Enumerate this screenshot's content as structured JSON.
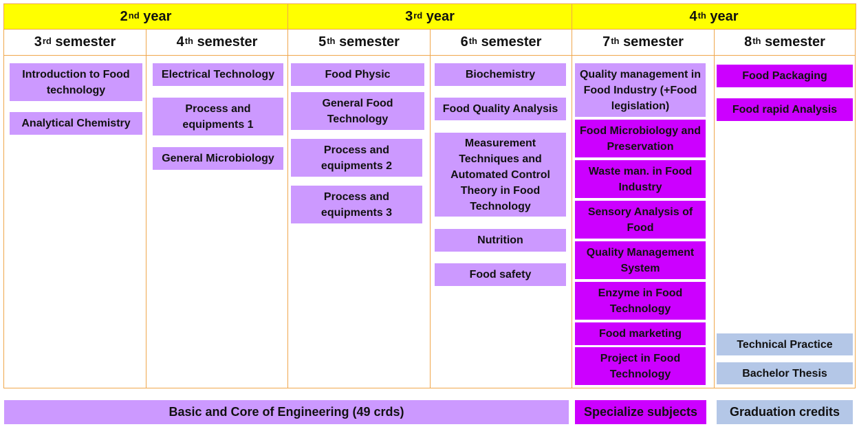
{
  "years": [
    {
      "num": "2",
      "sup": "nd",
      "text": "year"
    },
    {
      "num": "3",
      "sup": "rd",
      "text": "year"
    },
    {
      "num": "4",
      "sup": "th",
      "text": "year"
    }
  ],
  "semesters": [
    {
      "num": "3",
      "sup": "rd",
      "text": "semester"
    },
    {
      "num": "4",
      "sup": "th",
      "text": "semester"
    },
    {
      "num": "5",
      "sup": "th",
      "text": "semester"
    },
    {
      "num": "6",
      "sup": "th",
      "text": "semester"
    },
    {
      "num": "7",
      "sup": "th",
      "text": "semester"
    },
    {
      "num": "8",
      "sup": "th",
      "text": "semester"
    }
  ],
  "subjects": {
    "sem3": [
      "Introduction to Food technology",
      "Analytical Chemistry"
    ],
    "sem4": [
      "Electrical Technology",
      "Process and equipments 1",
      "General Microbiology"
    ],
    "sem5": [
      "Food Physic",
      "General Food Technology",
      "Process and equipments 2",
      "Process and equipments 3"
    ],
    "sem6": [
      "Biochemistry",
      "Food Quality Analysis",
      "Measurement Techniques and Automated Control Theory in Food Technology",
      "Nutrition",
      "Food safety"
    ],
    "sem7": [
      "Quality management in Food Industry (+Food legislation)",
      "Food Microbiology and Preservation",
      "Waste man. in Food Industry",
      "Sensory Analysis of Food",
      "Quality Management System",
      "Enzyme in Food Technology",
      "Food marketing",
      "Project in Food Technology"
    ],
    "sem8": [
      "Food Packaging",
      "Food rapid Analysis",
      "Technical Practice",
      "Bachelor Thesis"
    ]
  },
  "legend": {
    "basic": "Basic and Core of Engineering (49 crds)",
    "special": "Specialize subjects",
    "grad": "Graduation credits"
  },
  "colors": {
    "year_header": "#ffff00",
    "border": "#f0a64b",
    "basic": "#cc99ff",
    "specialize": "#cc00ff",
    "graduation": "#b4c7e7"
  }
}
